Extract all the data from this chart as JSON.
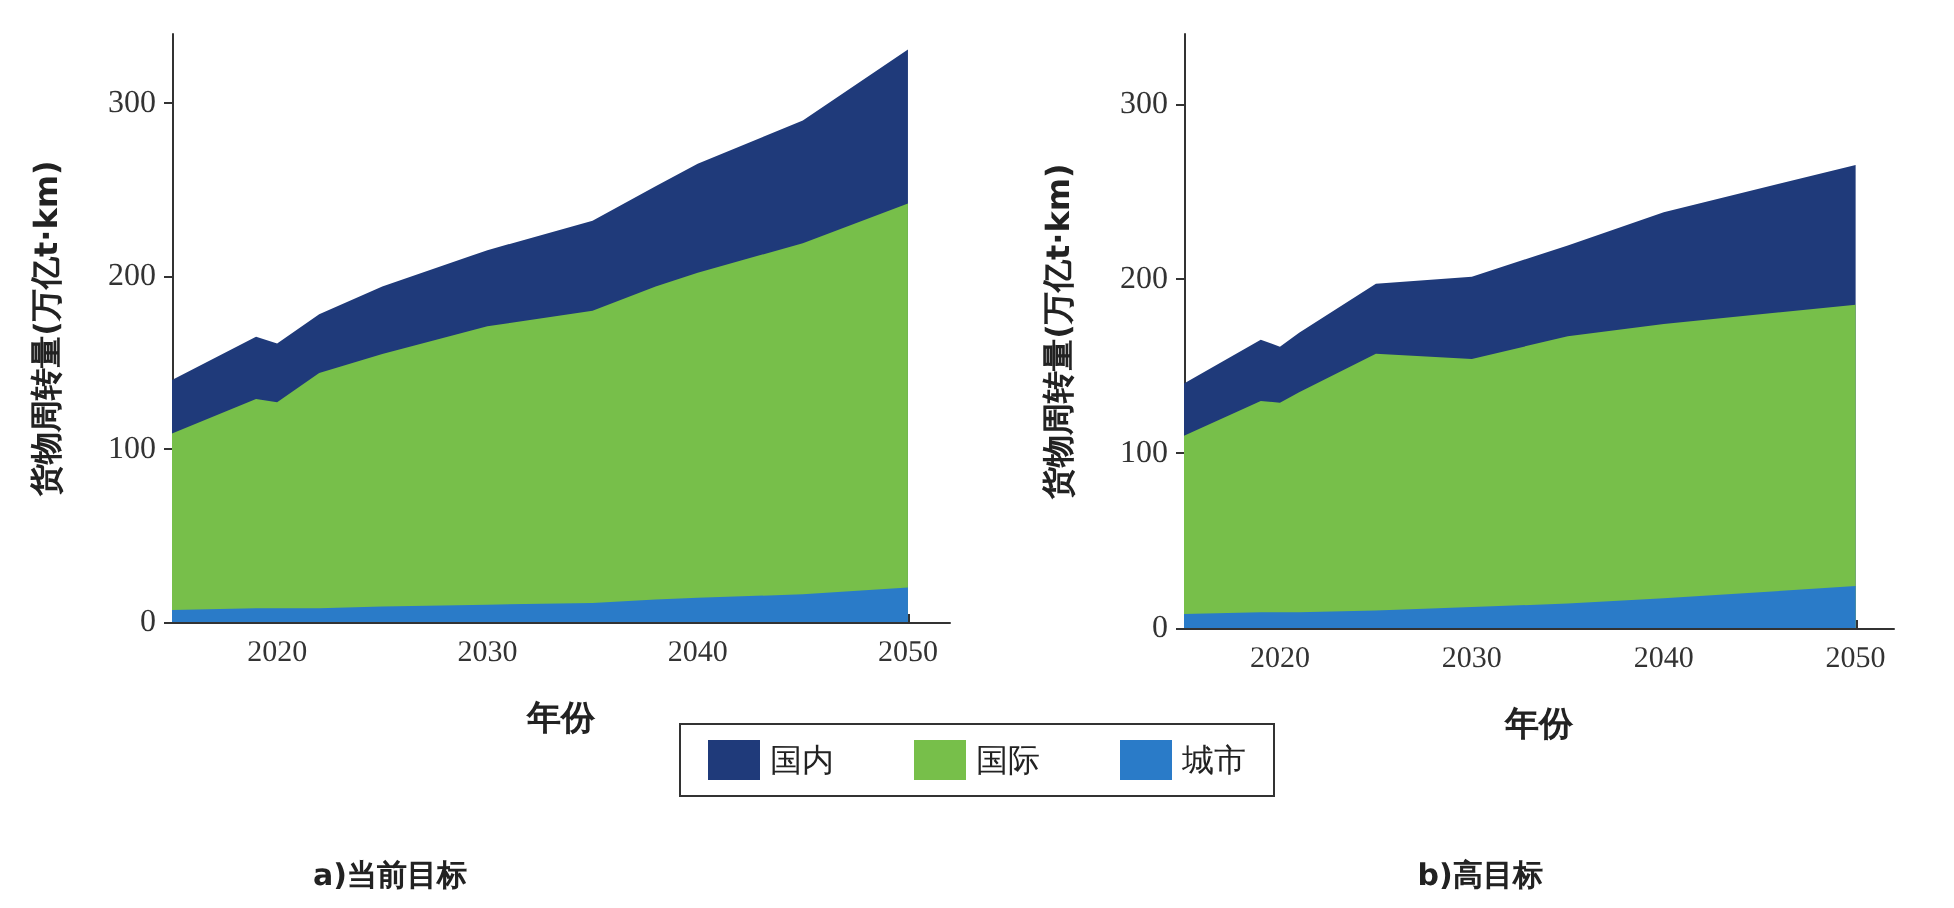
{
  "chart_data": [
    {
      "type": "area",
      "title": "a)当前目标",
      "xlabel": "年份",
      "ylabel": "货物周转量(万亿t·km)",
      "stacked": true,
      "legend": "bottom",
      "grid": false,
      "x": [
        2015,
        2019,
        2020,
        2022,
        2025,
        2030,
        2035,
        2038,
        2040,
        2045,
        2050
      ],
      "xlim": [
        2015,
        2052
      ],
      "xticks": [
        2020,
        2030,
        2040,
        2050
      ],
      "ylim": [
        0,
        340
      ],
      "yticks": [
        0,
        100,
        200,
        300
      ],
      "series": [
        {
          "name": "城市",
          "color": "#2a7bc8",
          "values": [
            7,
            8,
            8,
            8,
            9,
            10,
            11,
            13,
            14,
            16,
            20
          ]
        },
        {
          "name": "国际",
          "color": "#77bf4a",
          "values": [
            102,
            121,
            119,
            136,
            146,
            161,
            169,
            181,
            188,
            203,
            222
          ]
        },
        {
          "name": "国内",
          "color": "#1f3a7a",
          "values": [
            31,
            36,
            34,
            34,
            39,
            44,
            52,
            58,
            63,
            71,
            89
          ]
        }
      ]
    },
    {
      "type": "area",
      "title": "b)高目标",
      "xlabel": "年份",
      "ylabel": "货物周转量(万亿t·km)",
      "stacked": true,
      "legend": "bottom",
      "grid": false,
      "x": [
        2015,
        2019,
        2020,
        2021,
        2025,
        2030,
        2035,
        2040,
        2050
      ],
      "xlim": [
        2015,
        2052
      ],
      "xticks": [
        2020,
        2030,
        2040,
        2050
      ],
      "ylim": [
        0,
        340
      ],
      "yticks": [
        0,
        100,
        200,
        300
      ],
      "series": [
        {
          "name": "城市",
          "color": "#2a7bc8",
          "values": [
            8,
            9,
            9,
            9,
            10,
            12,
            14,
            17,
            24
          ]
        },
        {
          "name": "国际",
          "color": "#77bf4a",
          "values": [
            102,
            121,
            120,
            126,
            147,
            142,
            153,
            157,
            161
          ]
        },
        {
          "name": "国内",
          "color": "#1f3a7a",
          "values": [
            30,
            35,
            32,
            34,
            40,
            47,
            52,
            64,
            80
          ]
        }
      ]
    }
  ]
}
